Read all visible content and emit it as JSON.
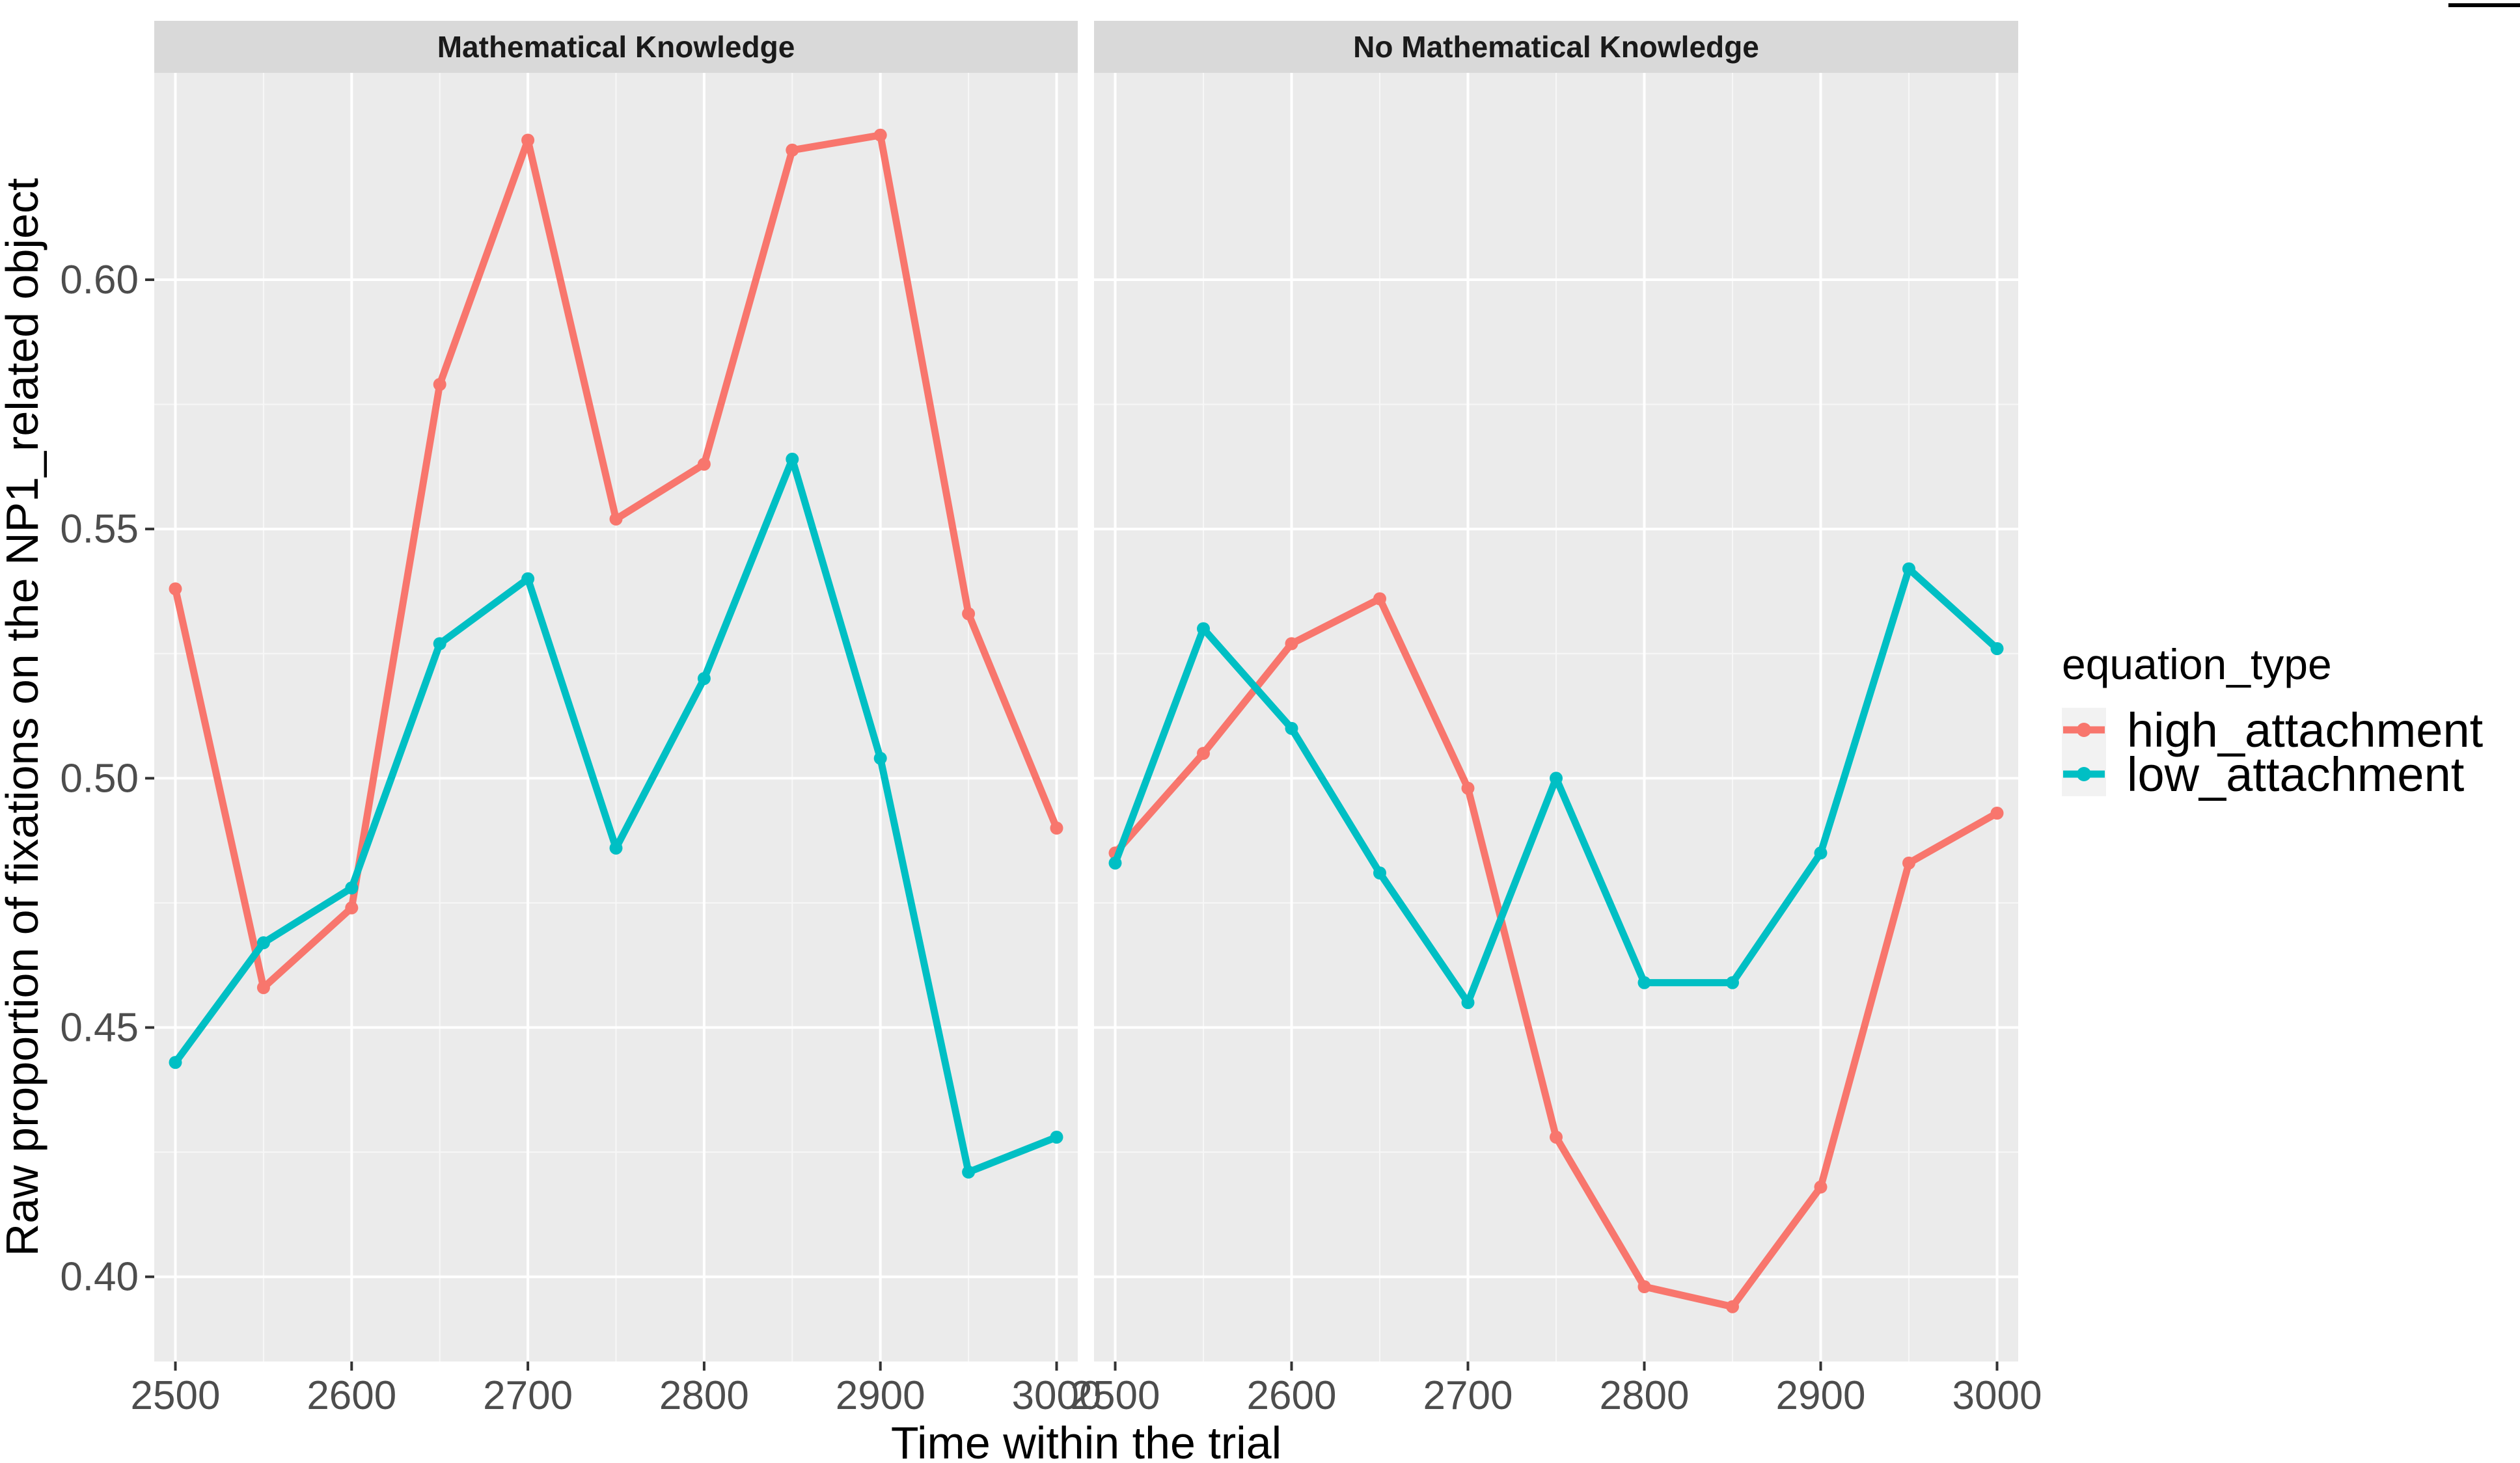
{
  "chart_data": {
    "type": "line",
    "xlabel": "Time within the trial",
    "ylabel": "Raw proportion of fixations on the NP1_related object",
    "x": [
      2500,
      2550,
      2600,
      2650,
      2700,
      2750,
      2800,
      2850,
      2900,
      2950,
      3000
    ],
    "x_ticks": [
      2500,
      2600,
      2700,
      2800,
      2900,
      3000
    ],
    "y_ticks": [
      0.4,
      0.45,
      0.5,
      0.55,
      0.6
    ],
    "y_tick_labels": [
      "0.40",
      "0.45",
      "0.50",
      "0.55",
      "0.60"
    ],
    "xlim": [
      2488,
      3012
    ],
    "ylim": [
      0.383,
      0.6415
    ],
    "grid": true,
    "legend": {
      "title": "equation_type",
      "position": "right",
      "entries": [
        "high_attachment",
        "low_attachment"
      ]
    },
    "colors": {
      "high_attachment": "#F8766D",
      "low_attachment": "#00BFC4"
    },
    "panels": [
      {
        "title": "Mathematical Knowledge",
        "series": [
          {
            "name": "high_attachment",
            "values": [
              0.538,
              0.458,
              0.474,
              0.579,
              0.628,
              0.552,
              0.563,
              0.626,
              0.629,
              0.533,
              0.49
            ]
          },
          {
            "name": "low_attachment",
            "values": [
              0.443,
              0.467,
              0.478,
              0.527,
              0.54,
              0.486,
              0.52,
              0.564,
              0.504,
              0.421,
              0.428
            ]
          }
        ]
      },
      {
        "title": "No Mathematical Knowledge",
        "series": [
          {
            "name": "high_attachment",
            "values": [
              0.485,
              0.505,
              0.527,
              0.536,
              0.498,
              0.428,
              0.398,
              0.394,
              0.418,
              0.483,
              0.493
            ]
          },
          {
            "name": "low_attachment",
            "values": [
              0.483,
              0.53,
              0.51,
              0.481,
              0.455,
              0.5,
              0.459,
              0.459,
              0.485,
              0.542,
              0.526
            ]
          }
        ]
      }
    ]
  }
}
